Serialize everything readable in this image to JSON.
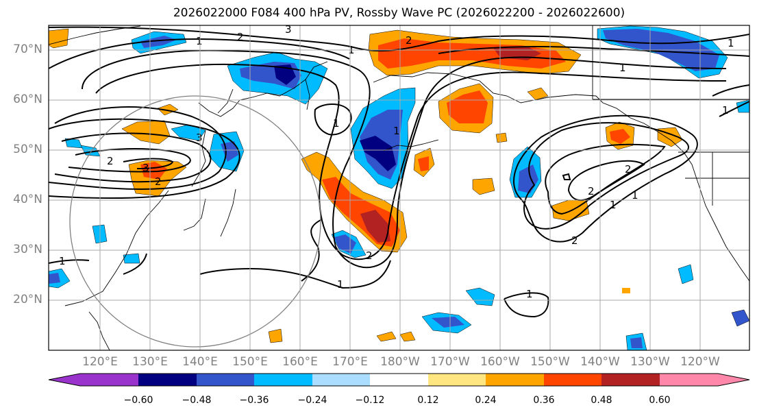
{
  "title": "2026022000 F084 400 hPa PV, Rossby Wave PC (2026022200 - 2026022600)",
  "lat_labels": [
    "70°N",
    "60°N",
    "50°N",
    "40°N",
    "30°N",
    "20°N"
  ],
  "lon_labels": [
    "120°E",
    "130°E",
    "140°E",
    "150°E",
    "160°E",
    "170°E",
    "180°W",
    "170°W",
    "160°W",
    "150°W",
    "140°W",
    "130°W",
    "120°W"
  ],
  "colorbar": {
    "colors": [
      "#9933cc",
      "#000080",
      "#3355cc",
      "#00bbff",
      "#aaddff",
      "#ffffff",
      "#ffe680",
      "#ffa500",
      "#ff4500",
      "#b22222",
      "#ff88aa"
    ],
    "tick_labels": [
      "−0.60",
      "−0.48",
      "−0.36",
      "−0.24",
      "−0.12",
      "0.12",
      "0.24",
      "0.36",
      "0.48",
      "0.60"
    ]
  },
  "contour_labels": [
    "3",
    "2",
    "1",
    "3",
    "2",
    "1",
    "1",
    "2",
    "1",
    "1",
    "2",
    "1",
    "3",
    "2",
    "1",
    "1",
    "2",
    "1",
    "1",
    "1",
    "2",
    "2",
    "1"
  ]
}
